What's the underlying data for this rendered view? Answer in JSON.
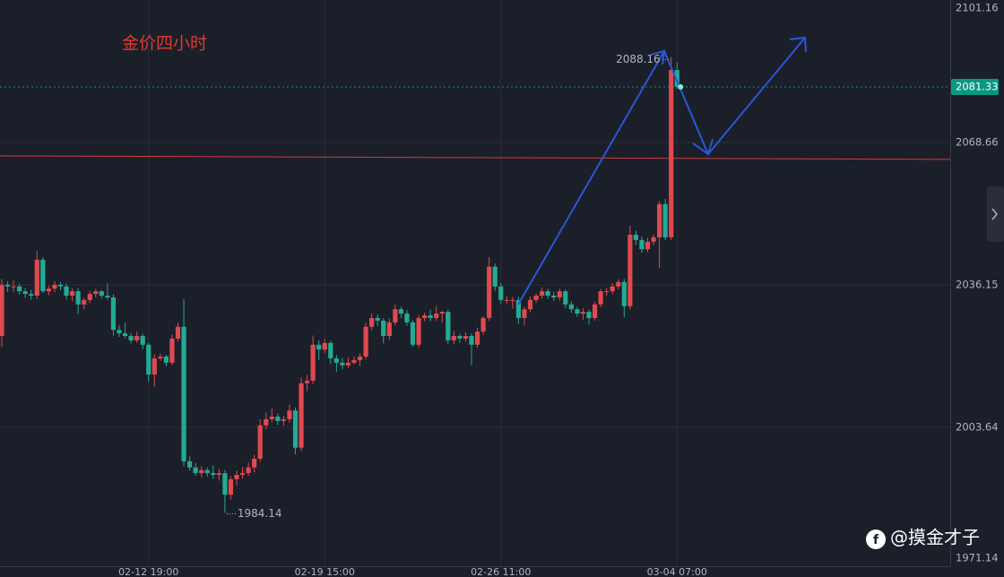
{
  "chart_data": {
    "type": "candlestick",
    "title": "金价四小时",
    "watermark": "@摸金才子",
    "categories": [
      null,
      null,
      null,
      null,
      null,
      null,
      null,
      null,
      null,
      null,
      null,
      null,
      null,
      null,
      null,
      null,
      null,
      null,
      null,
      null,
      null,
      null,
      null,
      null,
      null,
      "02-12 19:00",
      null,
      null,
      null,
      null,
      null,
      null,
      null,
      null,
      null,
      null,
      null,
      null,
      null,
      null,
      null,
      null,
      null,
      null,
      null,
      null,
      null,
      null,
      null,
      null,
      null,
      null,
      null,
      null,
      null,
      "02-19 15:00",
      null,
      null,
      null,
      null,
      null,
      null,
      null,
      null,
      null,
      null,
      null,
      null,
      null,
      null,
      null,
      null,
      null,
      null,
      null,
      null,
      null,
      null,
      null,
      null,
      null,
      null,
      null,
      null,
      null,
      "02-26 11:00",
      null,
      null,
      null,
      null,
      null,
      null,
      null,
      null,
      null,
      null,
      null,
      null,
      null,
      null,
      null,
      null,
      null,
      null,
      null,
      null,
      null,
      null,
      null,
      null,
      null,
      null,
      null,
      null,
      null,
      "03-04 07:00"
    ],
    "open": [
      2024.5,
      2036.2,
      2035.8,
      2035.8,
      2034.7,
      2034.1,
      2033.7,
      2041.9,
      2034.7,
      2035.3,
      2036.2,
      2035.8,
      2033.7,
      2034.7,
      2031.7,
      2032.7,
      2034.1,
      2034.7,
      2033.7,
      2033.3,
      2025.9,
      2025.1,
      2024.5,
      2023.5,
      2024.5,
      2022.5,
      2015.7,
      2019.4,
      2019.8,
      2018.4,
      2023.9,
      2026.6,
      1995.9,
      1994.5,
      1993.2,
      1993.9,
      1993.2,
      1992.8,
      1993.2,
      1988.3,
      1991.8,
      1992.8,
      1993.2,
      1994.5,
      1996.5,
      2004.1,
      2005.5,
      2006.1,
      2005.1,
      2005.5,
      2007.5,
      1999.0,
      2013.7,
      2014.3,
      2022.5,
      2021.4,
      2022.9,
      2019.4,
      2018.4,
      2017.8,
      2018.4,
      2019.0,
      2019.8,
      2026.6,
      2028.6,
      2028.0,
      2024.5,
      2027.6,
      2030.6,
      2029.6,
      2027.6,
      2022.5,
      2028.6,
      2029.2,
      2028.6,
      2029.6,
      2030.0,
      2023.5,
      2024.5,
      2023.9,
      2024.5,
      2022.5,
      2025.5,
      2028.6,
      2040.3,
      2035.8,
      2032.7,
      2032.7,
      2032.7,
      2028.6,
      2030.6,
      2032.7,
      2033.7,
      2034.7,
      2033.7,
      2033.3,
      2034.7,
      2031.7,
      2030.6,
      2029.6,
      2030.0,
      2028.6,
      2031.7,
      2034.7,
      2034.7,
      2035.8,
      2036.8,
      2031.3,
      2047.6,
      2046.4,
      2044.3,
      2046.0,
      2047.0,
      2054.6,
      2047.0,
      2085.2
    ],
    "high": [
      2037.5,
      2037.0,
      2037.2,
      2036.4,
      2035.5,
      2035.0,
      2043.9,
      2042.5,
      2036.0,
      2037.0,
      2036.8,
      2036.4,
      2035.4,
      2035.5,
      2033.2,
      2034.8,
      2035.3,
      2035.0,
      2036.5,
      2034.0,
      2027.0,
      2027.5,
      2025.2,
      2025.5,
      2025.0,
      2023.0,
      2020.3,
      2020.5,
      2020.2,
      2024.8,
      2027.5,
      2032.9,
      1997.0,
      1995.5,
      1994.8,
      1994.5,
      1995.0,
      1994.2,
      1993.9,
      1992.5,
      1993.8,
      1994.6,
      1995.6,
      1997.4,
      2005.5,
      2007.0,
      2008.0,
      2006.8,
      2006.3,
      2008.8,
      2008.2,
      2015.0,
      2015.6,
      2024.6,
      2023.5,
      2023.8,
      2023.4,
      2020.2,
      2019.5,
      2019.6,
      2019.8,
      2020.5,
      2027.5,
      2029.6,
      2029.4,
      2028.6,
      2028.5,
      2031.7,
      2031.2,
      2030.4,
      2028.1,
      2029.3,
      2029.8,
      2030.5,
      2031.3,
      2030.2,
      2030.5,
      2025.6,
      2025.0,
      2025.3,
      2025.1,
      2026.4,
      2029.0,
      2042.5,
      2041.0,
      2036.6,
      2033.6,
      2033.4,
      2033.4,
      2031.2,
      2033.5,
      2034.2,
      2035.6,
      2035.3,
      2034.6,
      2035.3,
      2035.1,
      2032.4,
      2031.2,
      2030.8,
      2030.6,
      2032.3,
      2035.2,
      2035.4,
      2036.5,
      2037.4,
      2037.5,
      2049.7,
      2048.5,
      2047.2,
      2046.9,
      2047.7,
      2055.3,
      2055.8,
      2088.16,
      2087.0
    ],
    "low": [
      2022.0,
      2034.5,
      2034.6,
      2034.0,
      2033.2,
      2032.8,
      2032.9,
      2034.3,
      2033.8,
      2034.5,
      2034.9,
      2032.8,
      2032.5,
      2029.5,
      2030.6,
      2032.0,
      2033.3,
      2033.0,
      2032.8,
      2024.6,
      2024.3,
      2024.0,
      2022.8,
      2022.9,
      2021.5,
      2014.0,
      2013.0,
      2018.8,
      2017.6,
      2017.9,
      2023.2,
      1994.8,
      1993.8,
      1992.6,
      1992.3,
      1992.4,
      1991.9,
      1991.5,
      1984.14,
      1987.2,
      1990.4,
      1992.0,
      1992.6,
      1993.4,
      1995.8,
      2003.2,
      2004.8,
      2004.2,
      2004.0,
      2004.7,
      1997.5,
      1998.2,
      2011.9,
      2013.5,
      2019.0,
      2020.6,
      2018.1,
      2016.3,
      2016.9,
      2017.2,
      2018.0,
      2017.6,
      2019.2,
      2025.8,
      2026.8,
      2022.8,
      2023.6,
      2026.9,
      2028.6,
      2026.8,
      2022.0,
      2021.8,
      2027.9,
      2027.8,
      2028.0,
      2027.5,
      2022.7,
      2022.6,
      2022.9,
      2023.2,
      2017.8,
      2021.8,
      2024.8,
      2027.9,
      2034.8,
      2031.9,
      2031.8,
      2030.7,
      2027.3,
      2026.9,
      2029.9,
      2032.0,
      2033.0,
      2033.0,
      2032.5,
      2032.6,
      2030.9,
      2029.8,
      2028.9,
      2028.2,
      2027.1,
      2028.0,
      2031.0,
      2033.6,
      2034.0,
      2035.1,
      2028.8,
      2030.6,
      2045.3,
      2043.5,
      2043.6,
      2045.2,
      2040.0,
      2046.4,
      2046.4,
      2080.9
    ],
    "close": [
      2036.2,
      2035.8,
      2035.8,
      2034.7,
      2034.1,
      2033.7,
      2041.9,
      2034.7,
      2035.3,
      2036.2,
      2035.8,
      2033.7,
      2034.7,
      2031.7,
      2032.7,
      2034.1,
      2034.7,
      2033.7,
      2033.3,
      2025.9,
      2025.1,
      2024.5,
      2023.5,
      2024.5,
      2022.5,
      2015.7,
      2019.4,
      2019.8,
      2018.4,
      2023.9,
      2026.6,
      1995.9,
      1994.5,
      1993.2,
      1993.9,
      1993.2,
      1992.8,
      1993.2,
      1988.3,
      1991.8,
      1992.8,
      1993.2,
      1994.5,
      1996.5,
      2004.1,
      2005.5,
      2006.1,
      2005.1,
      2005.5,
      2007.5,
      1999.0,
      2013.7,
      2014.3,
      2022.5,
      2021.4,
      2022.9,
      2019.4,
      2018.4,
      2017.8,
      2018.4,
      2019.0,
      2019.8,
      2026.6,
      2028.6,
      2028.0,
      2024.5,
      2027.6,
      2030.6,
      2029.6,
      2027.6,
      2022.5,
      2028.6,
      2029.2,
      2028.6,
      2029.6,
      2030.0,
      2023.5,
      2024.5,
      2023.9,
      2024.5,
      2022.5,
      2025.5,
      2028.6,
      2040.3,
      2035.8,
      2032.7,
      2032.7,
      2032.7,
      2028.6,
      2030.6,
      2032.7,
      2033.7,
      2034.7,
      2033.7,
      2033.3,
      2034.7,
      2031.7,
      2030.6,
      2029.6,
      2030.0,
      2028.6,
      2031.7,
      2034.7,
      2034.7,
      2035.8,
      2036.8,
      2031.3,
      2047.6,
      2046.4,
      2044.3,
      2046.0,
      2047.0,
      2054.6,
      2047.0,
      2085.2,
      2081.33
    ],
    "up_color": "#e0494f",
    "down_color": "#22ab94",
    "trend_line": {
      "values": [
        2065.6,
        2064.8
      ],
      "color": "#d9393f"
    },
    "ylim": [
      1971.14,
      2101.16
    ],
    "yticks": [
      1971.14,
      2003.64,
      2036.15,
      2068.66,
      2101.16
    ],
    "grid": true
  }
}
